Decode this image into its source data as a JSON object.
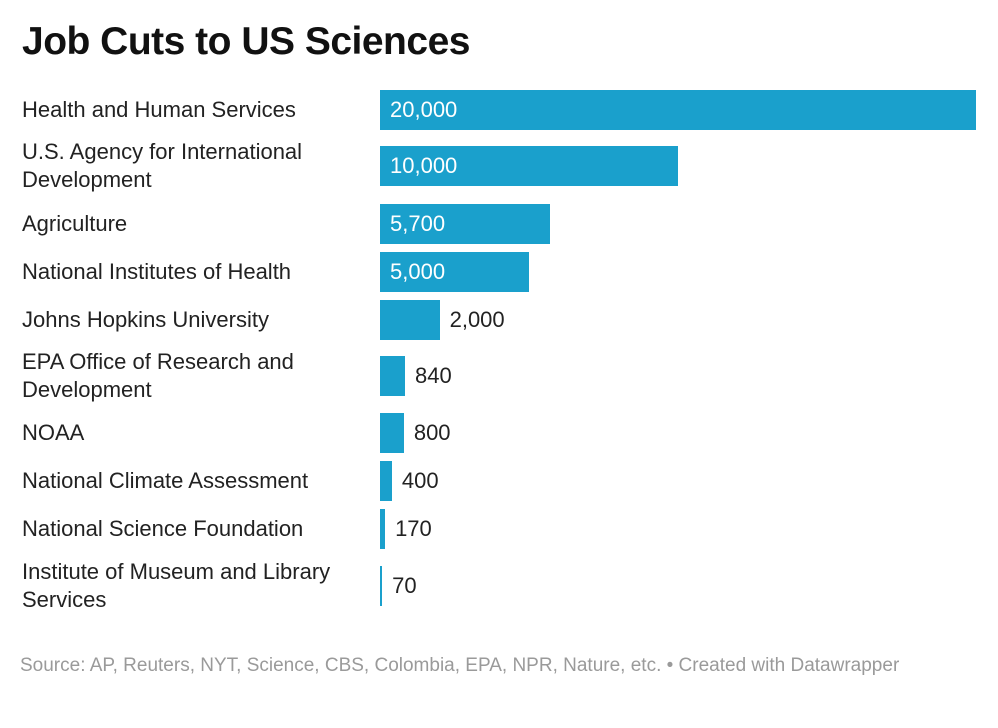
{
  "title": "Job Cuts to US Sciences",
  "footer": {
    "source": "Source: AP, Reuters, NYT, Science, CBS, Colombia, EPA, NPR, Nature, etc. • Created with Datawrapper"
  },
  "colors": {
    "bar": "#1aa0cc"
  },
  "chart_data": {
    "type": "bar",
    "orientation": "horizontal",
    "title": "Job Cuts to US Sciences",
    "categories": [
      "Health and Human Services",
      "U.S. Agency for International Development",
      "Agriculture",
      "National Institutes of Health",
      "Johns Hopkins University",
      "EPA Office of Research and Development",
      "NOAA",
      "National Climate Assessment",
      "National Science Foundation",
      "Institute of Museum and Library Services"
    ],
    "values": [
      20000,
      10000,
      5700,
      5000,
      2000,
      840,
      800,
      400,
      170,
      70
    ],
    "value_labels": [
      "20,000",
      "10,000",
      "5,700",
      "5,000",
      "2,000",
      "840",
      "800",
      "400",
      "170",
      "70"
    ],
    "xlim": [
      0,
      20000
    ],
    "grid": false,
    "legend": "none"
  }
}
